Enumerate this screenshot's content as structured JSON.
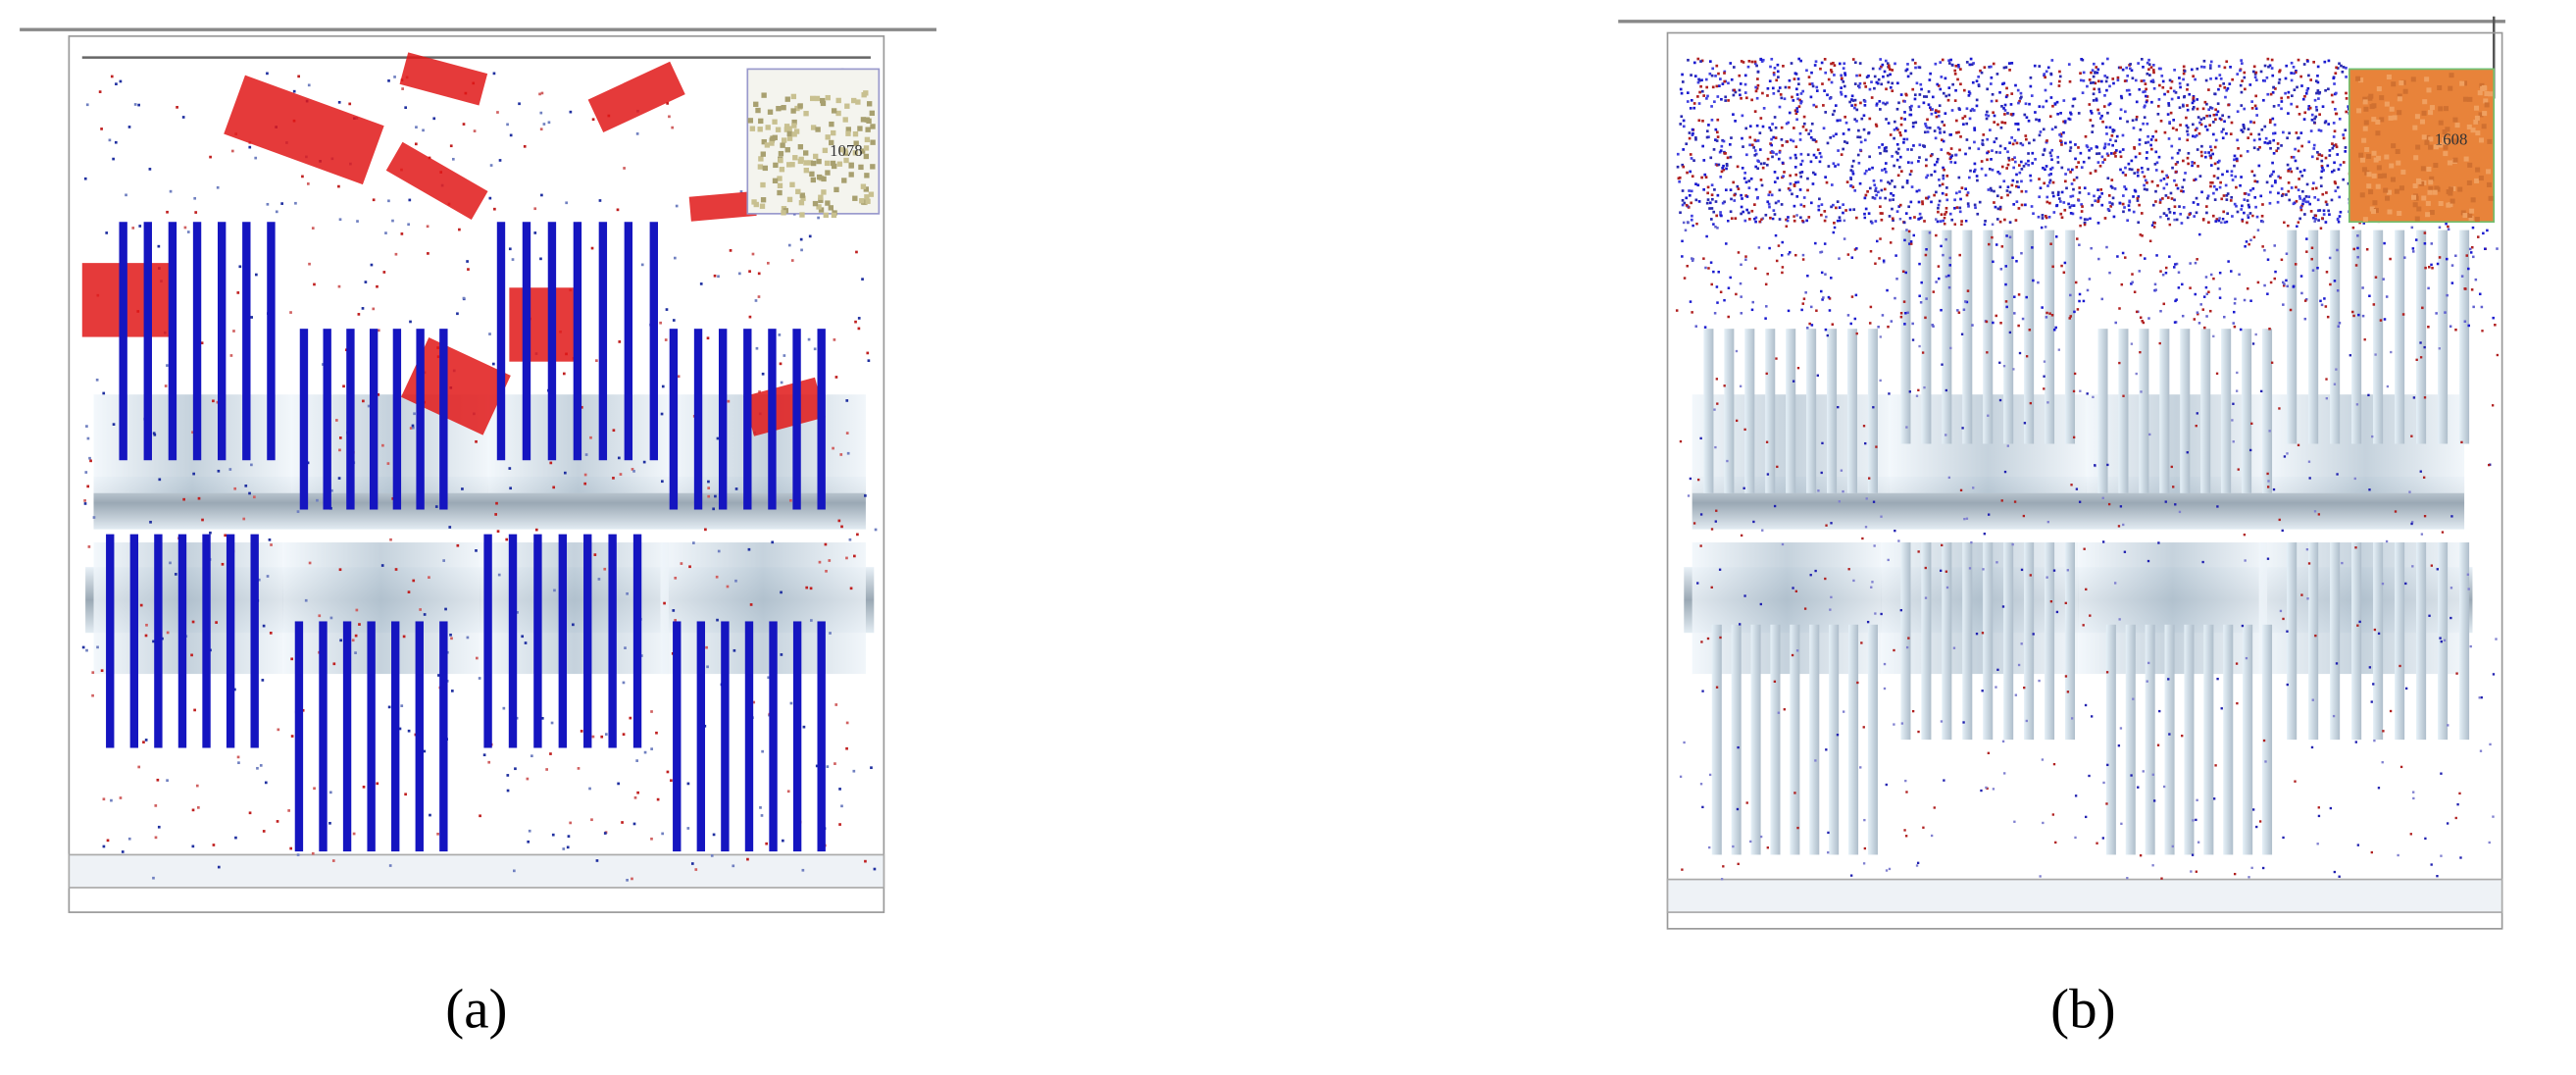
{
  "panels": [
    {
      "label": "(a)",
      "count_label": "1078"
    },
    {
      "label": "(b)",
      "count_label": "1608"
    }
  ]
}
